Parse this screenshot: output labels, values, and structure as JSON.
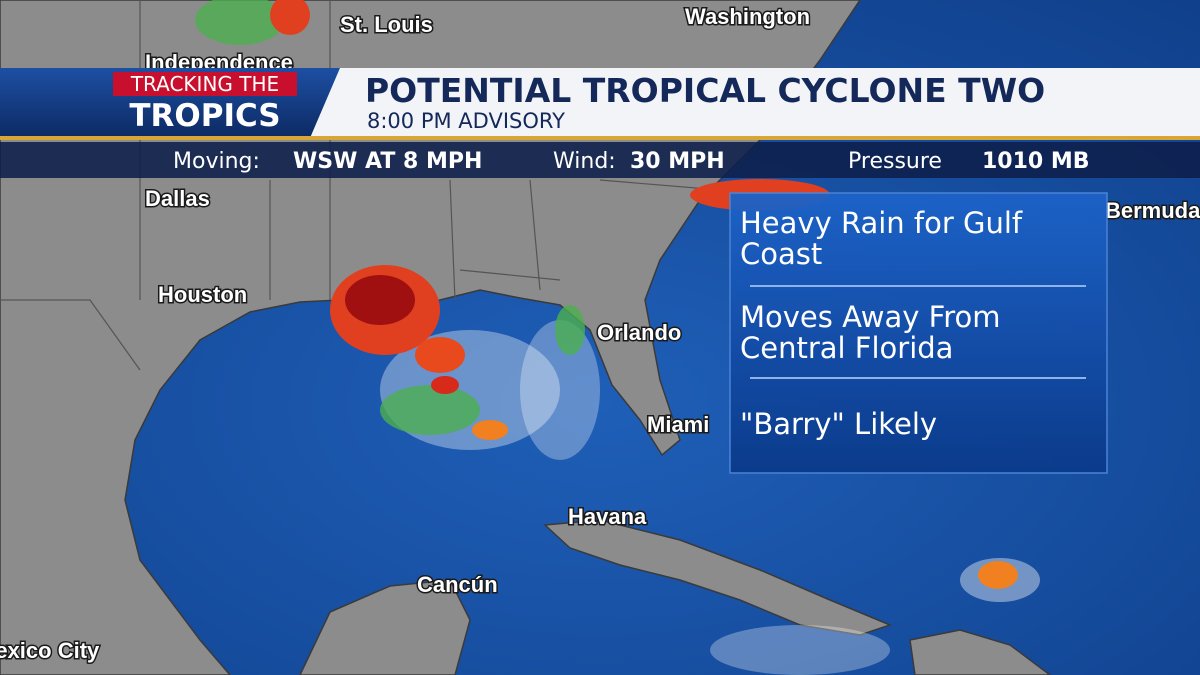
{
  "header": {
    "badge_top": "TRACKING THE",
    "badge_bottom": "TROPICS",
    "title": "POTENTIAL TROPICAL CYCLONE TWO",
    "subtitle": "8:00 PM ADVISORY"
  },
  "stats": [
    {
      "label": "Moving:",
      "value": "WSW AT 8 MPH"
    },
    {
      "label": "Wind:",
      "value": "30 MPH"
    },
    {
      "label": "Pressure",
      "value": "1010 MB"
    }
  ],
  "info": [
    "Heavy Rain for Gulf Coast",
    "Moves Away From Central Florida",
    "\"Barry\" Likely"
  ],
  "cities": [
    "St. Louis",
    "Washington",
    "Independence",
    "Dallas",
    "Houston",
    "Orlando",
    "Miami",
    "Havana",
    "Cancún",
    "Mexico City",
    "Bermuda"
  ]
}
